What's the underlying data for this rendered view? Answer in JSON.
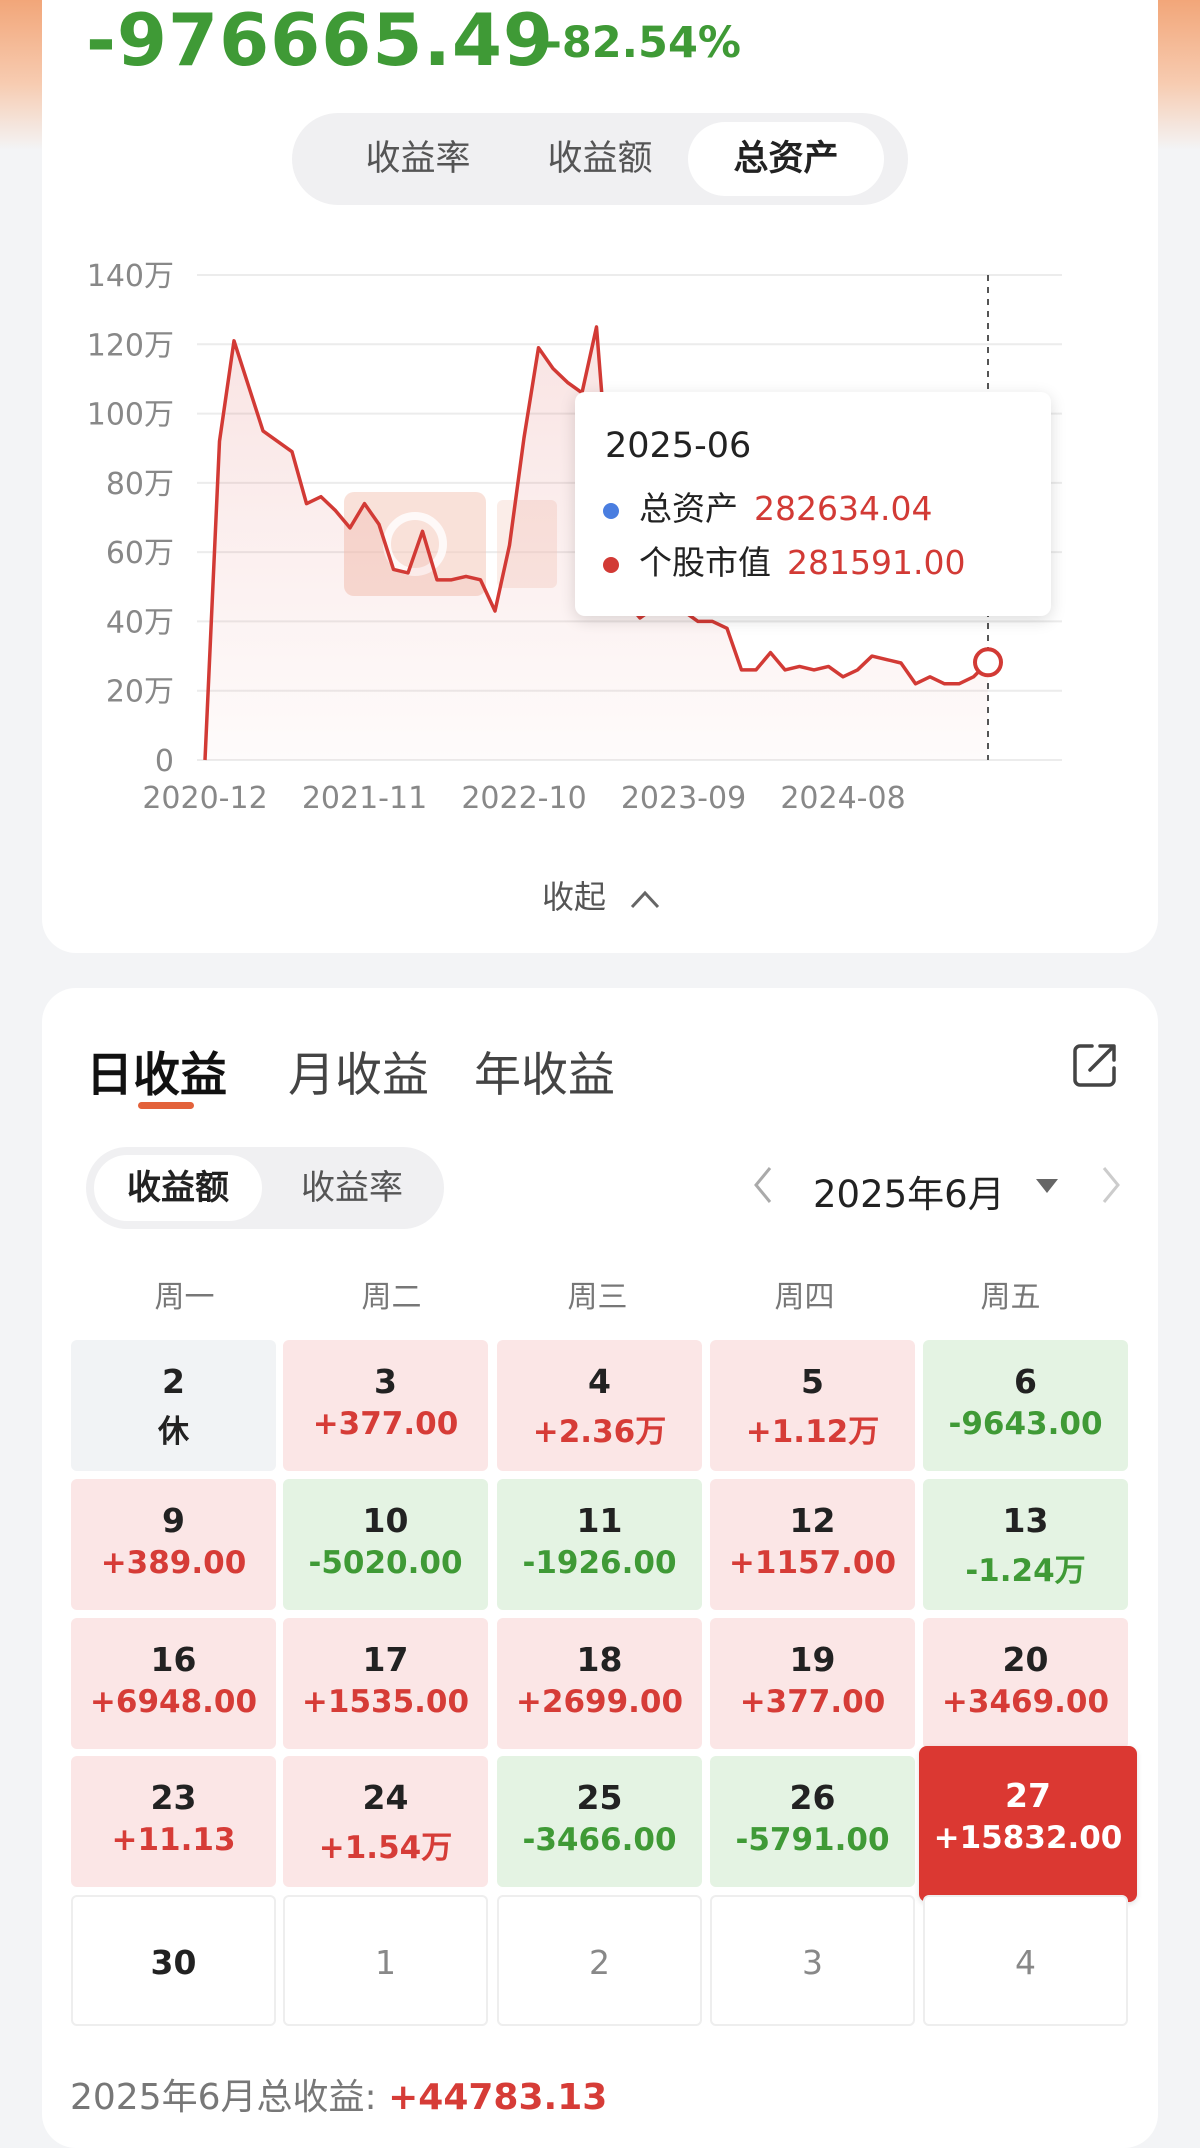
{
  "summary_header": {
    "total_return": "-976665.49",
    "total_return_rate": "-82.54%"
  },
  "chart_tabs": [
    {
      "label": "收益率",
      "active": false
    },
    {
      "label": "收益额",
      "active": false
    },
    {
      "label": "总资产",
      "active": true
    }
  ],
  "chart_data": {
    "type": "line",
    "x_tick_labels": [
      "2020-12",
      "2021-11",
      "2022-10",
      "2023-09",
      "2024-08"
    ],
    "y_tick_labels": [
      "0",
      "20万",
      "40万",
      "60万",
      "80万",
      "100万",
      "120万",
      "140万"
    ],
    "ylim": [
      0,
      140
    ],
    "y_unit": "万",
    "grid": true,
    "series": [
      {
        "name": "个股市值",
        "color": "#d23a35",
        "x": [
          "2020-12",
          "2021-01",
          "2021-02",
          "2021-03",
          "2021-04",
          "2021-05",
          "2021-06",
          "2021-07",
          "2021-08",
          "2021-09",
          "2021-10",
          "2021-11",
          "2021-12",
          "2022-01",
          "2022-02",
          "2022-03",
          "2022-04",
          "2022-05",
          "2022-06",
          "2022-07",
          "2022-08",
          "2022-09",
          "2022-10",
          "2022-11",
          "2022-12",
          "2023-01",
          "2023-02",
          "2023-03",
          "2023-04",
          "2023-05",
          "2023-06",
          "2023-07",
          "2023-08",
          "2023-09",
          "2023-10",
          "2023-11",
          "2023-12",
          "2024-01",
          "2024-02",
          "2024-03",
          "2024-04",
          "2024-05",
          "2024-06",
          "2024-07",
          "2024-08",
          "2024-09",
          "2024-10",
          "2024-11",
          "2024-12",
          "2025-01",
          "2025-02",
          "2025-03",
          "2025-04",
          "2025-05",
          "2025-06"
        ],
        "y": [
          0,
          92,
          121,
          108,
          95,
          92,
          89,
          74,
          76,
          72,
          67,
          74,
          68,
          55,
          54,
          66,
          52,
          52,
          53,
          52,
          43,
          62,
          93,
          119,
          113,
          109,
          106,
          125,
          72,
          46,
          41,
          44,
          43,
          43,
          40,
          40,
          38,
          26,
          26,
          31,
          26,
          27,
          26,
          27,
          24,
          26,
          30,
          29,
          28,
          22,
          24,
          22,
          22,
          24,
          28.2
        ]
      }
    ],
    "tooltip": {
      "date": "2025-06",
      "items": [
        {
          "label": "总资产",
          "value": "282634.04",
          "color": "#4a7ee0"
        },
        {
          "label": "个股市值",
          "value": "281591.00",
          "color": "#d23a35"
        }
      ]
    }
  },
  "collapse_label": "收起",
  "income_tabs": [
    {
      "label": "日收益",
      "active": true
    },
    {
      "label": "月收益",
      "active": false
    },
    {
      "label": "年收益",
      "active": false
    }
  ],
  "income_mode": [
    {
      "label": "收益额",
      "active": true
    },
    {
      "label": "收益率",
      "active": false
    }
  ],
  "month_label": "2025年6月",
  "weekdays": [
    "周一",
    "周二",
    "周三",
    "周四",
    "周五"
  ],
  "calendar": [
    [
      {
        "day": "2",
        "value": "休",
        "status": "gray"
      },
      {
        "day": "3",
        "value": "+377.00",
        "status": "red"
      },
      {
        "day": "4",
        "value": "+2.36万",
        "status": "red"
      },
      {
        "day": "5",
        "value": "+1.12万",
        "status": "red"
      },
      {
        "day": "6",
        "value": "-9643.00",
        "status": "green"
      }
    ],
    [
      {
        "day": "9",
        "value": "+389.00",
        "status": "red"
      },
      {
        "day": "10",
        "value": "-5020.00",
        "status": "green"
      },
      {
        "day": "11",
        "value": "-1926.00",
        "status": "green"
      },
      {
        "day": "12",
        "value": "+1157.00",
        "status": "red"
      },
      {
        "day": "13",
        "value": "-1.24万",
        "status": "green"
      }
    ],
    [
      {
        "day": "16",
        "value": "+6948.00",
        "status": "red"
      },
      {
        "day": "17",
        "value": "+1535.00",
        "status": "red"
      },
      {
        "day": "18",
        "value": "+2699.00",
        "status": "red"
      },
      {
        "day": "19",
        "value": "+377.00",
        "status": "red"
      },
      {
        "day": "20",
        "value": "+3469.00",
        "status": "red"
      }
    ],
    [
      {
        "day": "23",
        "value": "+11.13",
        "status": "red"
      },
      {
        "day": "24",
        "value": "+1.54万",
        "status": "red"
      },
      {
        "day": "25",
        "value": "-3466.00",
        "status": "green"
      },
      {
        "day": "26",
        "value": "-5791.00",
        "status": "green"
      },
      {
        "day": "27",
        "value": "+15832.00",
        "status": "selected"
      }
    ],
    [
      {
        "day": "30",
        "value": "",
        "status": "current-empty"
      },
      {
        "day": "1",
        "value": "",
        "status": "empty"
      },
      {
        "day": "2",
        "value": "",
        "status": "empty"
      },
      {
        "day": "3",
        "value": "",
        "status": "empty"
      },
      {
        "day": "4",
        "value": "",
        "status": "empty"
      }
    ]
  ],
  "month_summary": {
    "label": "2025年6月总收益:",
    "value": "+44783.13"
  },
  "colors": {
    "positive": "#d63c37",
    "negative": "#3f9a36",
    "accent": "#e3623b"
  },
  "icons": [
    "share-icon",
    "chevron-left-icon",
    "chevron-right-icon",
    "dropdown-arrow-icon",
    "chevron-up-icon"
  ]
}
